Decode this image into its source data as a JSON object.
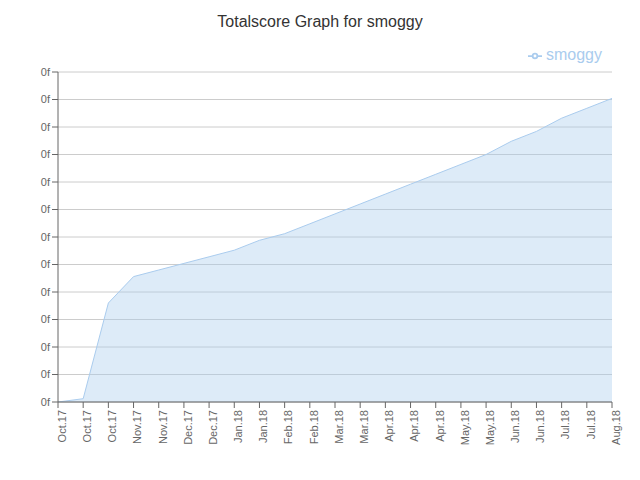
{
  "chart_data": {
    "type": "area",
    "title": "Totalscore Graph for smoggy",
    "x": [
      0,
      1,
      2,
      3,
      4,
      5,
      6,
      7,
      8,
      9,
      10,
      11,
      12,
      13,
      14,
      15,
      16,
      17,
      18,
      19,
      20,
      21,
      22
    ],
    "xlim": [
      0,
      22
    ],
    "xticks": [
      {
        "value": 0,
        "label": "Oct.17"
      },
      {
        "value": 1,
        "label": "Oct.17"
      },
      {
        "value": 2,
        "label": "Oct.17"
      },
      {
        "value": 3,
        "label": "Nov.17"
      },
      {
        "value": 4,
        "label": "Nov.17"
      },
      {
        "value": 5,
        "label": "Dec.17"
      },
      {
        "value": 6,
        "label": "Dec.17"
      },
      {
        "value": 7,
        "label": "Jan.18"
      },
      {
        "value": 8,
        "label": "Jan.18"
      },
      {
        "value": 9,
        "label": "Feb.18"
      },
      {
        "value": 10,
        "label": "Feb.18"
      },
      {
        "value": 11,
        "label": "Mar.18"
      },
      {
        "value": 12,
        "label": "Mar.18"
      },
      {
        "value": 13,
        "label": "Apr.18"
      },
      {
        "value": 14,
        "label": "Apr.18"
      },
      {
        "value": 15,
        "label": "Apr.18"
      },
      {
        "value": 16,
        "label": "May.18"
      },
      {
        "value": 17,
        "label": "May.18"
      },
      {
        "value": 18,
        "label": "Jun.18"
      },
      {
        "value": 19,
        "label": "Jun.18"
      },
      {
        "value": 20,
        "label": "Jul.18"
      },
      {
        "value": 21,
        "label": "Jul.18"
      },
      {
        "value": 22,
        "label": "Aug.18"
      }
    ],
    "ylim": [
      0,
      1
    ],
    "yticks": [
      {
        "value": 0,
        "label": "0f"
      },
      {
        "value": 0.08333333333333333,
        "label": "0f"
      },
      {
        "value": 0.16666666666666666,
        "label": "0f"
      },
      {
        "value": 0.25,
        "label": "0f"
      },
      {
        "value": 0.3333333333333333,
        "label": "0f"
      },
      {
        "value": 0.41666666666666663,
        "label": "0f"
      },
      {
        "value": 0.5,
        "label": "0f"
      },
      {
        "value": 0.5833333333333333,
        "label": "0f"
      },
      {
        "value": 0.6666666666666666,
        "label": "0f"
      },
      {
        "value": 0.75,
        "label": "0f"
      },
      {
        "value": 0.8333333333333333,
        "label": "0f"
      },
      {
        "value": 0.9166666666666666,
        "label": "0f"
      },
      {
        "value": 1.0,
        "label": "0f"
      }
    ],
    "series": [
      {
        "name": "smoggy",
        "color": "#aaccee",
        "values": [
          0.0,
          0.01,
          0.3,
          0.38,
          0.4,
          0.42,
          0.44,
          0.46,
          0.49,
          0.51,
          0.54,
          0.57,
          0.6,
          0.63,
          0.66,
          0.69,
          0.72,
          0.75,
          0.79,
          0.82,
          0.86,
          0.89,
          0.92
        ]
      }
    ],
    "grid": true,
    "legend": "upper right"
  }
}
